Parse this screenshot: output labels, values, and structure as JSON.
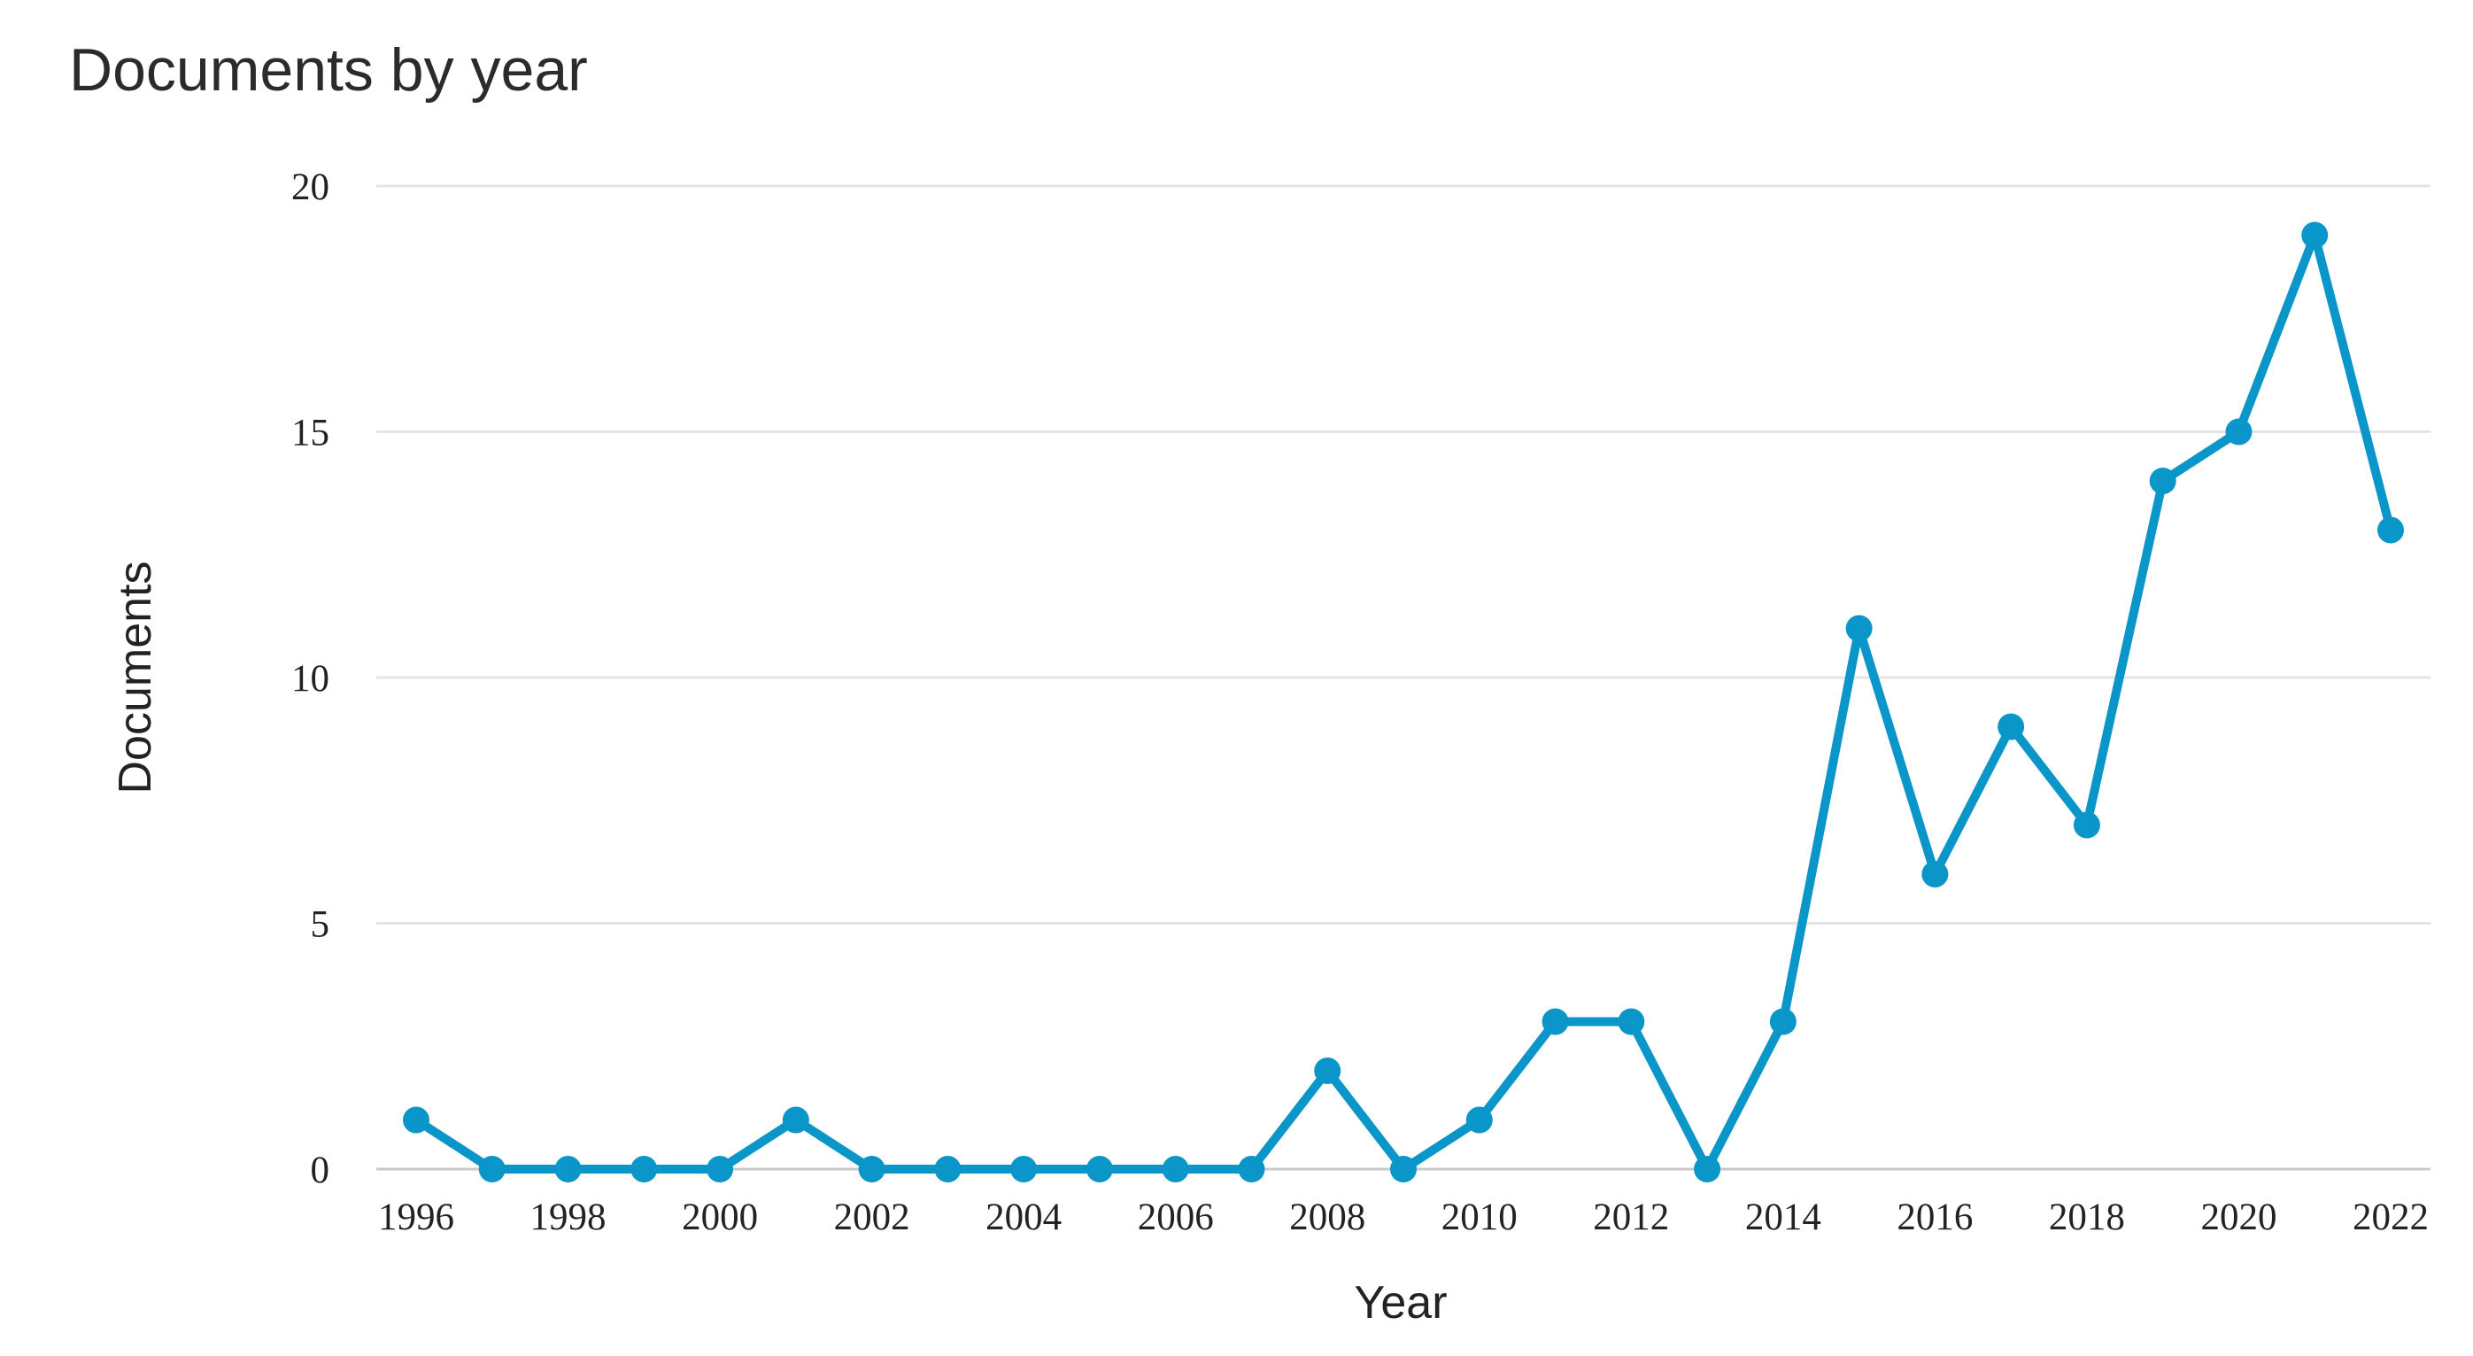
{
  "chart_data": {
    "type": "line",
    "title": "Documents by year",
    "xlabel": "Year",
    "ylabel": "Documents",
    "x": [
      1996,
      1997,
      1998,
      1999,
      2000,
      2001,
      2002,
      2003,
      2004,
      2005,
      2006,
      2007,
      2008,
      2009,
      2010,
      2011,
      2012,
      2013,
      2014,
      2015,
      2016,
      2017,
      2018,
      2019,
      2020,
      2021,
      2022
    ],
    "series": [
      {
        "values": [
          1,
          0,
          0,
          0,
          0,
          1,
          0,
          0,
          0,
          0,
          0,
          0,
          2,
          0,
          1,
          3,
          3,
          0,
          3,
          11,
          6,
          9,
          7,
          14,
          15,
          19,
          13
        ]
      }
    ],
    "x_ticks": [
      "1996",
      "1998",
      "2000",
      "2002",
      "2004",
      "2006",
      "2008",
      "2010",
      "2012",
      "2014",
      "2016",
      "2018",
      "2020",
      "2022"
    ],
    "y_ticks": [
      "0",
      "5",
      "10",
      "15",
      "20"
    ],
    "ylim": [
      0,
      20
    ],
    "xlim": [
      1996,
      2022
    ],
    "grid": true,
    "legend": "none",
    "colors": {
      "line": "#0a96c8",
      "grid": "#e4e4e4"
    }
  }
}
